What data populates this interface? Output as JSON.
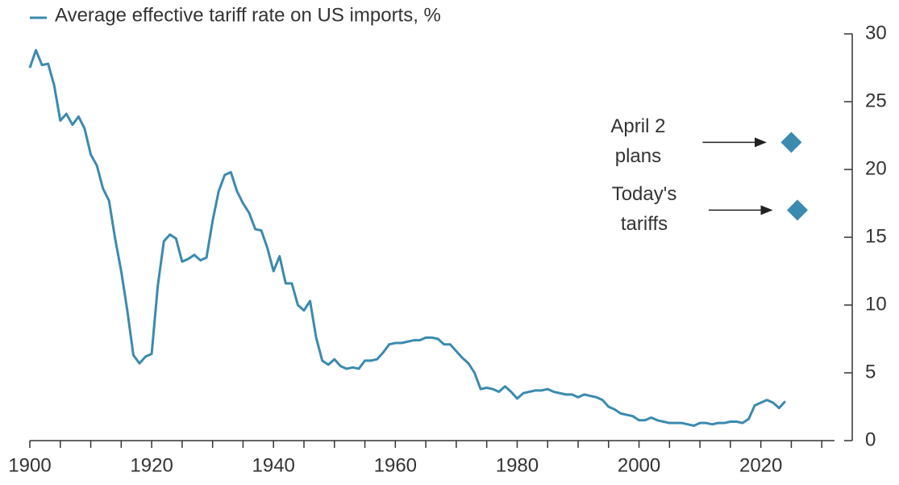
{
  "chart_data": {
    "type": "line",
    "series": [
      {
        "name": "Average effective tariff rate on US imports, %",
        "color": "#3b8aaf",
        "x": [
          1900,
          1901,
          1902,
          1903,
          1904,
          1905,
          1906,
          1907,
          1908,
          1909,
          1910,
          1911,
          1912,
          1913,
          1914,
          1915,
          1916,
          1917,
          1918,
          1919,
          1920,
          1921,
          1922,
          1923,
          1924,
          1925,
          1926,
          1927,
          1928,
          1929,
          1930,
          1931,
          1932,
          1933,
          1934,
          1935,
          1936,
          1937,
          1938,
          1939,
          1940,
          1941,
          1942,
          1943,
          1944,
          1945,
          1946,
          1947,
          1948,
          1949,
          1950,
          1951,
          1952,
          1953,
          1954,
          1955,
          1956,
          1957,
          1958,
          1959,
          1960,
          1961,
          1962,
          1963,
          1964,
          1965,
          1966,
          1967,
          1968,
          1969,
          1970,
          1971,
          1972,
          1973,
          1974,
          1975,
          1976,
          1977,
          1978,
          1979,
          1980,
          1981,
          1982,
          1983,
          1984,
          1985,
          1986,
          1987,
          1988,
          1989,
          1990,
          1991,
          1992,
          1993,
          1994,
          1995,
          1996,
          1997,
          1998,
          1999,
          2000,
          2001,
          2002,
          2003,
          2004,
          2005,
          2006,
          2007,
          2008,
          2009,
          2010,
          2011,
          2012,
          2013,
          2014,
          2015,
          2016,
          2017,
          2018,
          2019,
          2020,
          2021,
          2022,
          2023,
          2024
        ],
        "values": [
          27.5,
          28.8,
          27.7,
          27.8,
          26.2,
          23.6,
          24.1,
          23.3,
          23.9,
          23.0,
          21.1,
          20.3,
          18.6,
          17.7,
          14.9,
          12.5,
          9.6,
          6.3,
          5.7,
          6.2,
          6.4,
          11.4,
          14.7,
          15.2,
          14.9,
          13.2,
          13.4,
          13.7,
          13.3,
          13.5,
          16.2,
          18.4,
          19.6,
          19.8,
          18.4,
          17.5,
          16.8,
          15.6,
          15.5,
          14.2,
          12.5,
          13.6,
          11.6,
          11.6,
          10.0,
          9.6,
          10.3,
          7.6,
          5.9,
          5.6,
          6.0,
          5.5,
          5.3,
          5.4,
          5.3,
          5.9,
          5.9,
          6.0,
          6.5,
          7.1,
          7.2,
          7.2,
          7.3,
          7.4,
          7.4,
          7.6,
          7.6,
          7.5,
          7.1,
          7.1,
          6.6,
          6.1,
          5.7,
          5.0,
          3.8,
          3.9,
          3.8,
          3.6,
          4.0,
          3.6,
          3.1,
          3.5,
          3.6,
          3.7,
          3.7,
          3.8,
          3.6,
          3.5,
          3.4,
          3.4,
          3.2,
          3.4,
          3.3,
          3.2,
          3.0,
          2.5,
          2.3,
          2.0,
          1.9,
          1.8,
          1.5,
          1.5,
          1.7,
          1.5,
          1.4,
          1.3,
          1.3,
          1.3,
          1.2,
          1.1,
          1.3,
          1.3,
          1.2,
          1.3,
          1.3,
          1.4,
          1.4,
          1.3,
          1.6,
          2.6,
          2.8,
          3.0,
          2.8,
          2.4,
          2.9
        ]
      }
    ],
    "points": [
      {
        "label": [
          "April 2",
          "plans"
        ],
        "x": 2025,
        "y": 22,
        "color": "#3b8aaf"
      },
      {
        "label": [
          "Today's",
          "tariffs"
        ],
        "x": 2026,
        "y": 17,
        "color": "#3b8aaf"
      }
    ],
    "xlim": [
      1900,
      2035
    ],
    "xticks": [
      1900,
      1920,
      1940,
      1960,
      1980,
      2000,
      2020
    ],
    "xminorticks": [
      1905,
      1910,
      1915,
      1925,
      1930,
      1935,
      1945,
      1950,
      1955,
      1965,
      1970,
      1975,
      1985,
      1990,
      1995,
      2005,
      2010,
      2015,
      2025,
      2030
    ],
    "ylim": [
      0,
      30
    ],
    "yticks": [
      0,
      5,
      10,
      15,
      20,
      25,
      30
    ],
    "yaxis_side": "right",
    "grid": false
  }
}
